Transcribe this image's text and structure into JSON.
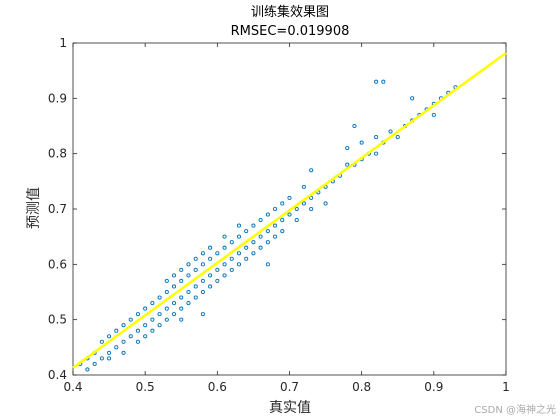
{
  "chart_data": {
    "type": "scatter",
    "title": "训练集效果图",
    "subtitle": "RMSEC=0.019908",
    "xlabel": "真实值",
    "ylabel": "预测值",
    "xlim": [
      0.4,
      1.0
    ],
    "ylim": [
      0.4,
      1.0
    ],
    "xticks": [
      "0.4",
      "0.5",
      "0.6",
      "0.7",
      "0.8",
      "0.9",
      "1"
    ],
    "yticks": [
      "0.4",
      "0.5",
      "0.6",
      "0.7",
      "0.8",
      "0.9",
      "1"
    ],
    "grid": false,
    "series": [
      {
        "marker_color": "#0072BD",
        "points": [
          [
            0.41,
            0.42
          ],
          [
            0.42,
            0.43
          ],
          [
            0.42,
            0.41
          ],
          [
            0.43,
            0.44
          ],
          [
            0.43,
            0.42
          ],
          [
            0.44,
            0.43
          ],
          [
            0.44,
            0.46
          ],
          [
            0.45,
            0.44
          ],
          [
            0.45,
            0.47
          ],
          [
            0.45,
            0.43
          ],
          [
            0.46,
            0.45
          ],
          [
            0.46,
            0.48
          ],
          [
            0.47,
            0.46
          ],
          [
            0.47,
            0.49
          ],
          [
            0.47,
            0.44
          ],
          [
            0.48,
            0.47
          ],
          [
            0.48,
            0.5
          ],
          [
            0.49,
            0.48
          ],
          [
            0.49,
            0.51
          ],
          [
            0.49,
            0.46
          ],
          [
            0.5,
            0.49
          ],
          [
            0.5,
            0.52
          ],
          [
            0.5,
            0.47
          ],
          [
            0.51,
            0.5
          ],
          [
            0.51,
            0.53
          ],
          [
            0.51,
            0.48
          ],
          [
            0.52,
            0.51
          ],
          [
            0.52,
            0.54
          ],
          [
            0.52,
            0.49
          ],
          [
            0.53,
            0.52
          ],
          [
            0.53,
            0.55
          ],
          [
            0.53,
            0.5
          ],
          [
            0.53,
            0.57
          ],
          [
            0.54,
            0.53
          ],
          [
            0.54,
            0.56
          ],
          [
            0.54,
            0.51
          ],
          [
            0.54,
            0.58
          ],
          [
            0.55,
            0.54
          ],
          [
            0.55,
            0.57
          ],
          [
            0.55,
            0.52
          ],
          [
            0.55,
            0.59
          ],
          [
            0.56,
            0.55
          ],
          [
            0.56,
            0.58
          ],
          [
            0.56,
            0.53
          ],
          [
            0.56,
            0.6
          ],
          [
            0.57,
            0.56
          ],
          [
            0.57,
            0.59
          ],
          [
            0.57,
            0.54
          ],
          [
            0.57,
            0.61
          ],
          [
            0.58,
            0.57
          ],
          [
            0.58,
            0.6
          ],
          [
            0.58,
            0.55
          ],
          [
            0.58,
            0.62
          ],
          [
            0.59,
            0.58
          ],
          [
            0.59,
            0.61
          ],
          [
            0.59,
            0.56
          ],
          [
            0.59,
            0.63
          ],
          [
            0.6,
            0.59
          ],
          [
            0.6,
            0.62
          ],
          [
            0.6,
            0.57
          ],
          [
            0.61,
            0.6
          ],
          [
            0.61,
            0.63
          ],
          [
            0.61,
            0.58
          ],
          [
            0.61,
            0.65
          ],
          [
            0.62,
            0.61
          ],
          [
            0.62,
            0.64
          ],
          [
            0.62,
            0.59
          ],
          [
            0.63,
            0.62
          ],
          [
            0.63,
            0.65
          ],
          [
            0.63,
            0.6
          ],
          [
            0.63,
            0.67
          ],
          [
            0.64,
            0.63
          ],
          [
            0.64,
            0.66
          ],
          [
            0.64,
            0.61
          ],
          [
            0.65,
            0.64
          ],
          [
            0.65,
            0.67
          ],
          [
            0.65,
            0.62
          ],
          [
            0.66,
            0.65
          ],
          [
            0.66,
            0.68
          ],
          [
            0.66,
            0.63
          ],
          [
            0.67,
            0.66
          ],
          [
            0.67,
            0.69
          ],
          [
            0.67,
            0.64
          ],
          [
            0.68,
            0.67
          ],
          [
            0.68,
            0.7
          ],
          [
            0.68,
            0.65
          ],
          [
            0.69,
            0.68
          ],
          [
            0.69,
            0.71
          ],
          [
            0.69,
            0.66
          ],
          [
            0.7,
            0.69
          ],
          [
            0.7,
            0.72
          ],
          [
            0.71,
            0.7
          ],
          [
            0.71,
            0.68
          ],
          [
            0.72,
            0.71
          ],
          [
            0.72,
            0.74
          ],
          [
            0.73,
            0.72
          ],
          [
            0.73,
            0.7
          ],
          [
            0.74,
            0.73
          ],
          [
            0.75,
            0.74
          ],
          [
            0.75,
            0.71
          ],
          [
            0.76,
            0.75
          ],
          [
            0.77,
            0.76
          ],
          [
            0.78,
            0.78
          ],
          [
            0.78,
            0.81
          ],
          [
            0.79,
            0.78
          ],
          [
            0.8,
            0.79
          ],
          [
            0.8,
            0.82
          ],
          [
            0.81,
            0.8
          ],
          [
            0.82,
            0.83
          ],
          [
            0.82,
            0.8
          ],
          [
            0.83,
            0.82
          ],
          [
            0.84,
            0.84
          ],
          [
            0.85,
            0.83
          ],
          [
            0.86,
            0.85
          ],
          [
            0.87,
            0.86
          ],
          [
            0.88,
            0.87
          ],
          [
            0.89,
            0.88
          ],
          [
            0.9,
            0.89
          ],
          [
            0.91,
            0.9
          ],
          [
            0.92,
            0.91
          ],
          [
            0.93,
            0.92
          ],
          [
            0.82,
            0.93
          ],
          [
            0.83,
            0.93
          ],
          [
            0.79,
            0.85
          ],
          [
            0.87,
            0.9
          ],
          [
            0.9,
            0.87
          ],
          [
            0.58,
            0.51
          ],
          [
            0.55,
            0.5
          ],
          [
            0.67,
            0.6
          ],
          [
            0.73,
            0.77
          ]
        ]
      },
      {
        "type": "line",
        "color": "#FFFF00",
        "x": [
          0.4,
          1.0
        ],
        "y": [
          0.413,
          0.982
        ]
      }
    ]
  },
  "watermark": "CSDN @海神之光"
}
